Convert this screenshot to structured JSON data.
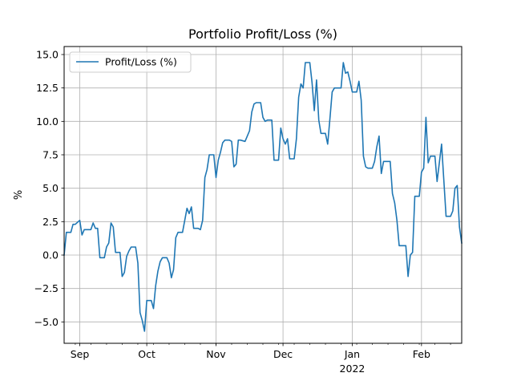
{
  "chart_data": {
    "type": "line",
    "title": "Portfolio Profit/Loss (%)",
    "xlabel": "",
    "ylabel": "%",
    "grid": true,
    "legend_position": "upper-left",
    "ylim": [
      -6.6,
      15.6
    ],
    "xlim": [
      "2021-08-25",
      "2022-02-19"
    ],
    "yticks": [
      -5.0,
      -2.5,
      0.0,
      2.5,
      5.0,
      7.5,
      10.0,
      12.5,
      15.0
    ],
    "ytick_labels": [
      "−5.0",
      "−2.5",
      "0.0",
      "2.5",
      "5.0",
      "7.5",
      "10.0",
      "12.5",
      "15.0"
    ],
    "xticks": [
      {
        "date": "2021-09-01",
        "label": "Sep"
      },
      {
        "date": "2021-10-01",
        "label": "Oct"
      },
      {
        "date": "2021-11-01",
        "label": "Nov"
      },
      {
        "date": "2021-12-01",
        "label": "Dec"
      },
      {
        "date": "2022-01-01",
        "label": "Jan",
        "sublabel": "2022"
      },
      {
        "date": "2022-02-01",
        "label": "Feb"
      }
    ],
    "series": [
      {
        "name": "Profit/Loss (%)",
        "color": "#1f77b4",
        "points": [
          [
            "2021-08-25",
            0.0
          ],
          [
            "2021-08-26",
            1.7
          ],
          [
            "2021-08-28",
            1.7
          ],
          [
            "2021-08-29",
            2.3
          ],
          [
            "2021-08-30",
            2.3
          ],
          [
            "2021-09-01",
            2.6
          ],
          [
            "2021-09-02",
            1.5
          ],
          [
            "2021-09-03",
            1.9
          ],
          [
            "2021-09-06",
            1.9
          ],
          [
            "2021-09-07",
            2.4
          ],
          [
            "2021-09-08",
            2.0
          ],
          [
            "2021-09-09",
            2.0
          ],
          [
            "2021-09-10",
            -0.2
          ],
          [
            "2021-09-12",
            -0.2
          ],
          [
            "2021-09-13",
            0.6
          ],
          [
            "2021-09-14",
            0.9
          ],
          [
            "2021-09-15",
            2.4
          ],
          [
            "2021-09-16",
            2.1
          ],
          [
            "2021-09-17",
            0.2
          ],
          [
            "2021-09-19",
            0.2
          ],
          [
            "2021-09-20",
            -1.6
          ],
          [
            "2021-09-21",
            -1.3
          ],
          [
            "2021-09-22",
            -0.1
          ],
          [
            "2021-09-23",
            0.3
          ],
          [
            "2021-09-24",
            0.6
          ],
          [
            "2021-09-26",
            0.6
          ],
          [
            "2021-09-27",
            -0.6
          ],
          [
            "2021-09-28",
            -4.3
          ],
          [
            "2021-09-29",
            -4.9
          ],
          [
            "2021-09-30",
            -5.7
          ],
          [
            "2021-10-01",
            -3.4
          ],
          [
            "2021-10-03",
            -3.4
          ],
          [
            "2021-10-04",
            -4.0
          ],
          [
            "2021-10-05",
            -2.3
          ],
          [
            "2021-10-06",
            -1.2
          ],
          [
            "2021-10-07",
            -0.5
          ],
          [
            "2021-10-08",
            -0.2
          ],
          [
            "2021-10-10",
            -0.2
          ],
          [
            "2021-10-11",
            -0.6
          ],
          [
            "2021-10-12",
            -1.7
          ],
          [
            "2021-10-13",
            -1.1
          ],
          [
            "2021-10-14",
            1.3
          ],
          [
            "2021-10-15",
            1.7
          ],
          [
            "2021-10-17",
            1.7
          ],
          [
            "2021-10-18",
            2.6
          ],
          [
            "2021-10-19",
            3.5
          ],
          [
            "2021-10-20",
            3.1
          ],
          [
            "2021-10-21",
            3.6
          ],
          [
            "2021-10-22",
            2.0
          ],
          [
            "2021-10-24",
            2.0
          ],
          [
            "2021-10-25",
            1.9
          ],
          [
            "2021-10-26",
            2.6
          ],
          [
            "2021-10-27",
            5.8
          ],
          [
            "2021-10-28",
            6.4
          ],
          [
            "2021-10-29",
            7.5
          ],
          [
            "2021-10-31",
            7.5
          ],
          [
            "2021-11-01",
            5.8
          ],
          [
            "2021-11-02",
            7.1
          ],
          [
            "2021-11-03",
            7.7
          ],
          [
            "2021-11-04",
            8.4
          ],
          [
            "2021-11-05",
            8.6
          ],
          [
            "2021-11-07",
            8.6
          ],
          [
            "2021-11-08",
            8.5
          ],
          [
            "2021-11-09",
            6.6
          ],
          [
            "2021-11-10",
            6.8
          ],
          [
            "2021-11-11",
            8.6
          ],
          [
            "2021-11-12",
            8.6
          ],
          [
            "2021-11-14",
            8.5
          ],
          [
            "2021-11-15",
            8.9
          ],
          [
            "2021-11-16",
            9.3
          ],
          [
            "2021-11-17",
            10.7
          ],
          [
            "2021-11-18",
            11.3
          ],
          [
            "2021-11-19",
            11.4
          ],
          [
            "2021-11-21",
            11.4
          ],
          [
            "2021-11-22",
            10.3
          ],
          [
            "2021-11-23",
            10.0
          ],
          [
            "2021-11-24",
            10.1
          ],
          [
            "2021-11-26",
            10.1
          ],
          [
            "2021-11-27",
            7.1
          ],
          [
            "2021-11-29",
            7.1
          ],
          [
            "2021-11-30",
            9.5
          ],
          [
            "2021-12-01",
            8.7
          ],
          [
            "2021-12-02",
            8.3
          ],
          [
            "2021-12-03",
            8.7
          ],
          [
            "2021-12-04",
            7.2
          ],
          [
            "2021-12-06",
            7.2
          ],
          [
            "2021-12-07",
            8.7
          ],
          [
            "2021-12-08",
            11.8
          ],
          [
            "2021-12-09",
            12.8
          ],
          [
            "2021-12-10",
            12.5
          ],
          [
            "2021-12-11",
            14.4
          ],
          [
            "2021-12-13",
            14.4
          ],
          [
            "2021-12-14",
            12.9
          ],
          [
            "2021-12-15",
            10.8
          ],
          [
            "2021-12-16",
            13.1
          ],
          [
            "2021-12-17",
            10.1
          ],
          [
            "2021-12-18",
            9.1
          ],
          [
            "2021-12-20",
            9.1
          ],
          [
            "2021-12-21",
            8.3
          ],
          [
            "2021-12-22",
            10.2
          ],
          [
            "2021-12-23",
            12.2
          ],
          [
            "2021-12-24",
            12.5
          ],
          [
            "2021-12-27",
            12.5
          ],
          [
            "2021-12-28",
            14.4
          ],
          [
            "2021-12-29",
            13.6
          ],
          [
            "2021-12-30",
            13.7
          ],
          [
            "2021-12-31",
            13.0
          ],
          [
            "2022-01-01",
            12.2
          ],
          [
            "2022-01-03",
            12.2
          ],
          [
            "2022-01-04",
            13.0
          ],
          [
            "2022-01-05",
            11.6
          ],
          [
            "2022-01-06",
            7.4
          ],
          [
            "2022-01-07",
            6.6
          ],
          [
            "2022-01-08",
            6.5
          ],
          [
            "2022-01-10",
            6.5
          ],
          [
            "2022-01-11",
            7.0
          ],
          [
            "2022-01-12",
            8.1
          ],
          [
            "2022-01-13",
            8.9
          ],
          [
            "2022-01-14",
            6.1
          ],
          [
            "2022-01-15",
            7.0
          ],
          [
            "2022-01-18",
            7.0
          ],
          [
            "2022-01-19",
            4.6
          ],
          [
            "2022-01-20",
            3.9
          ],
          [
            "2022-01-21",
            2.6
          ],
          [
            "2022-01-22",
            0.7
          ],
          [
            "2022-01-25",
            0.7
          ],
          [
            "2022-01-26",
            -1.6
          ],
          [
            "2022-01-27",
            0.0
          ],
          [
            "2022-01-28",
            0.2
          ],
          [
            "2022-01-29",
            4.4
          ],
          [
            "2022-01-31",
            4.4
          ],
          [
            "2022-02-01",
            6.2
          ],
          [
            "2022-02-02",
            6.5
          ],
          [
            "2022-02-03",
            10.3
          ],
          [
            "2022-02-04",
            6.9
          ],
          [
            "2022-02-05",
            7.4
          ],
          [
            "2022-02-07",
            7.4
          ],
          [
            "2022-02-08",
            5.5
          ],
          [
            "2022-02-09",
            6.9
          ],
          [
            "2022-02-10",
            8.3
          ],
          [
            "2022-02-11",
            5.6
          ],
          [
            "2022-02-12",
            2.9
          ],
          [
            "2022-02-14",
            2.9
          ],
          [
            "2022-02-15",
            3.3
          ],
          [
            "2022-02-16",
            5.0
          ],
          [
            "2022-02-17",
            5.2
          ],
          [
            "2022-02-18",
            2.1
          ],
          [
            "2022-02-19",
            0.9
          ]
        ]
      }
    ]
  }
}
